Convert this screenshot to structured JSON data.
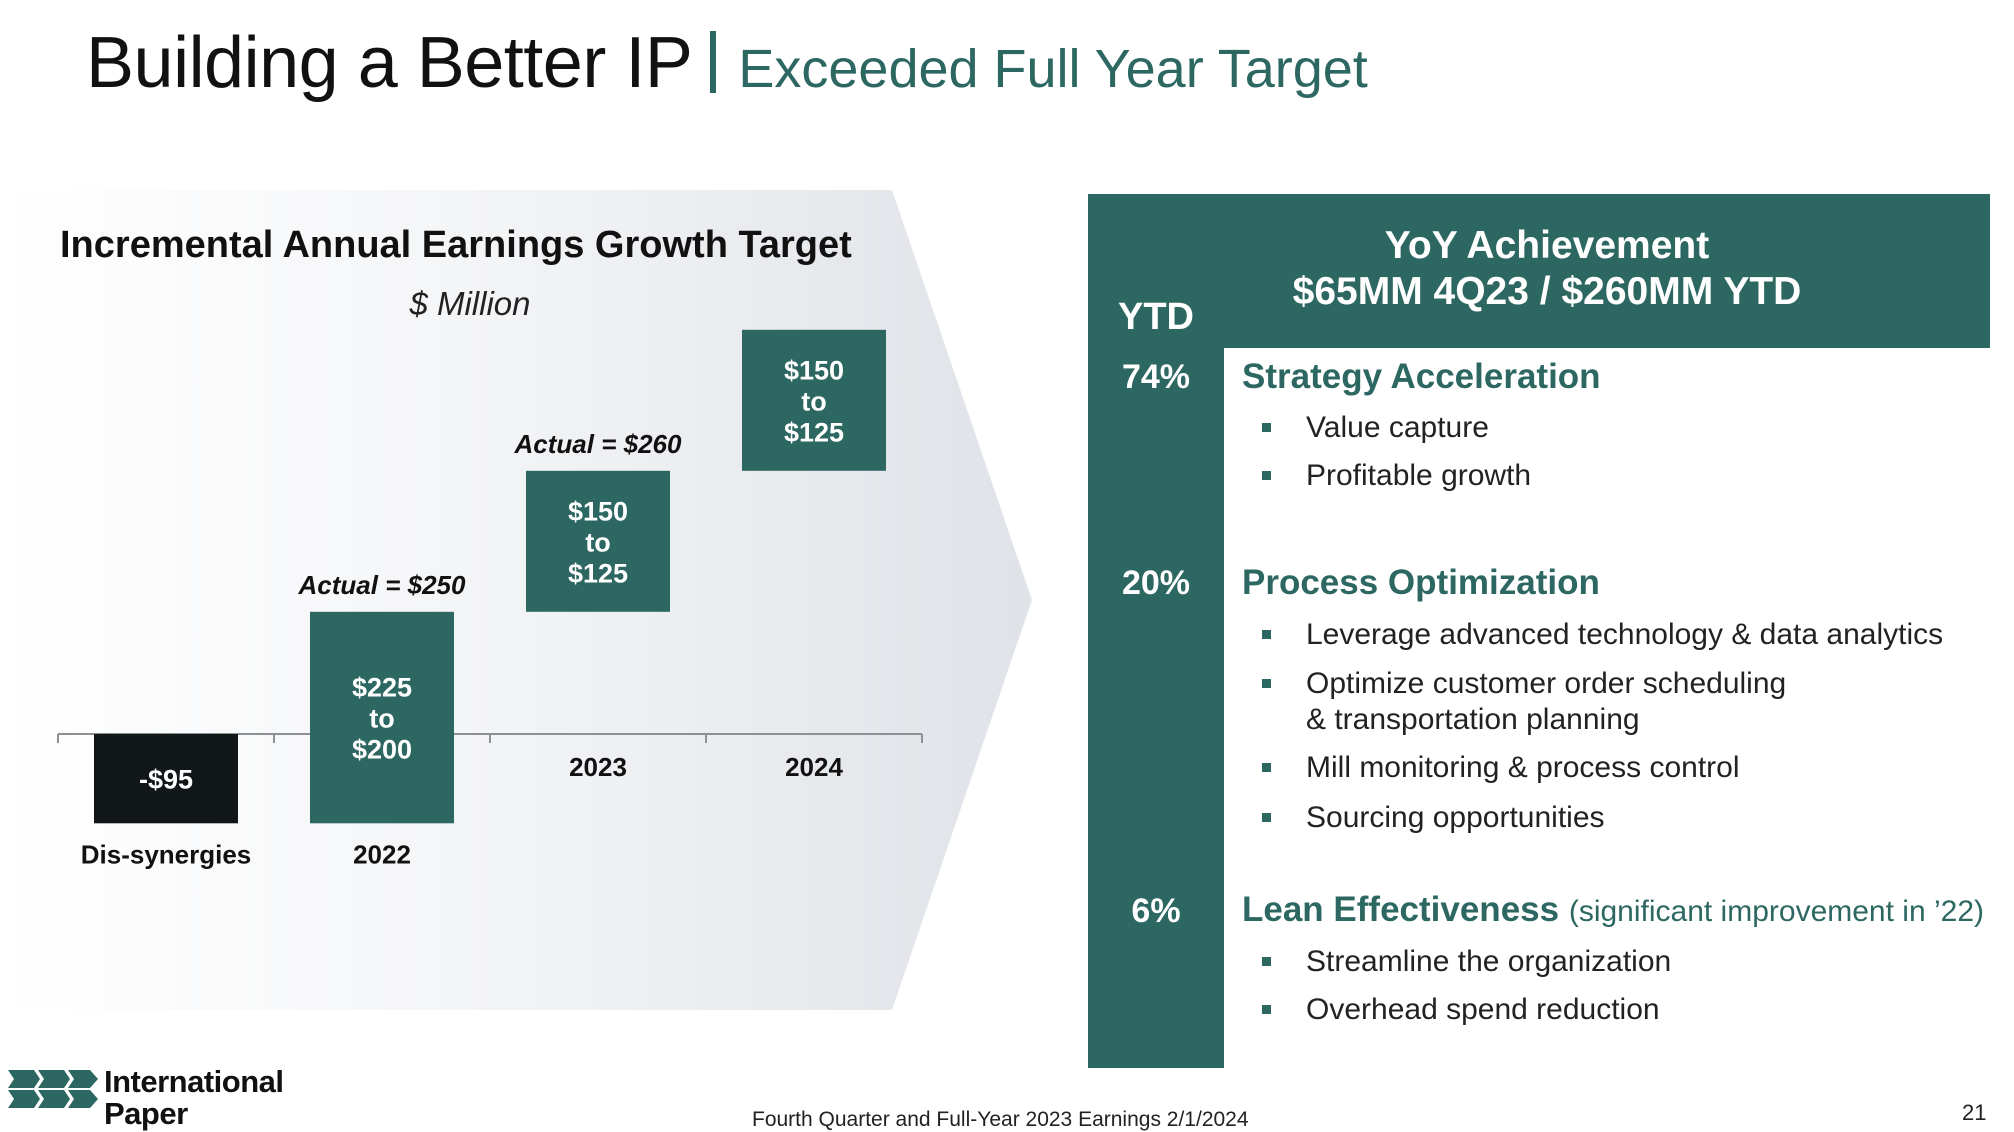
{
  "header": {
    "title": "Building a Better IP",
    "subtitle": "Exceeded Full Year Target"
  },
  "chart_data": {
    "type": "bar",
    "subtype": "waterfall",
    "title": "Incremental Annual Earnings Growth Target",
    "unit_label": "$ Million",
    "categories": [
      "Dis-synergies",
      "2022",
      "2023",
      "2024"
    ],
    "bars": [
      {
        "category": "Dis-synergies",
        "low": -95,
        "high": 0,
        "label": "-$95",
        "color": "#111619"
      },
      {
        "category": "2022",
        "low": -95,
        "high": 130,
        "label": "$225\nto\n$200",
        "color": "#2d6762"
      },
      {
        "category": "2023",
        "low": 130,
        "high": 280,
        "label": "$150\nto\n$125",
        "color": "#2d6762"
      },
      {
        "category": "2024",
        "low": 280,
        "high": 430,
        "label": "$150\nto\n$125",
        "color": "#2d6762"
      }
    ],
    "annotations": [
      {
        "category": "2022",
        "text": "Actual = $250"
      },
      {
        "category": "2023",
        "text": "Actual = $260"
      }
    ],
    "ylim": [
      -95,
      430
    ]
  },
  "achievement": {
    "ytd_label": "YTD",
    "title": "YoY Achievement",
    "subtitle": "$65MM 4Q23  /  $260MM YTD"
  },
  "sections": [
    {
      "pct": "74%",
      "title": "Strategy Acceleration",
      "note": "",
      "bullets": [
        "Value capture",
        "Profitable growth"
      ]
    },
    {
      "pct": "20%",
      "title": "Process Optimization",
      "note": "",
      "bullets": [
        "Leverage advanced technology & data analytics",
        "Optimize customer order scheduling",
        "& transportation planning",
        "Mill monitoring & process control",
        "Sourcing opportunities"
      ]
    },
    {
      "pct": "6%",
      "title": "Lean Effectiveness",
      "note": "(significant improvement in ’22)",
      "bullets": [
        "Streamline the organization",
        "Overhead spend reduction"
      ]
    }
  ],
  "footer": {
    "logo_line1": "International",
    "logo_line2": "Paper",
    "text": "Fourth Quarter and Full-Year 2023 Earnings 2/1/2024",
    "page": "21"
  },
  "colors": {
    "accent": "#2d6762",
    "dark": "#111619"
  }
}
